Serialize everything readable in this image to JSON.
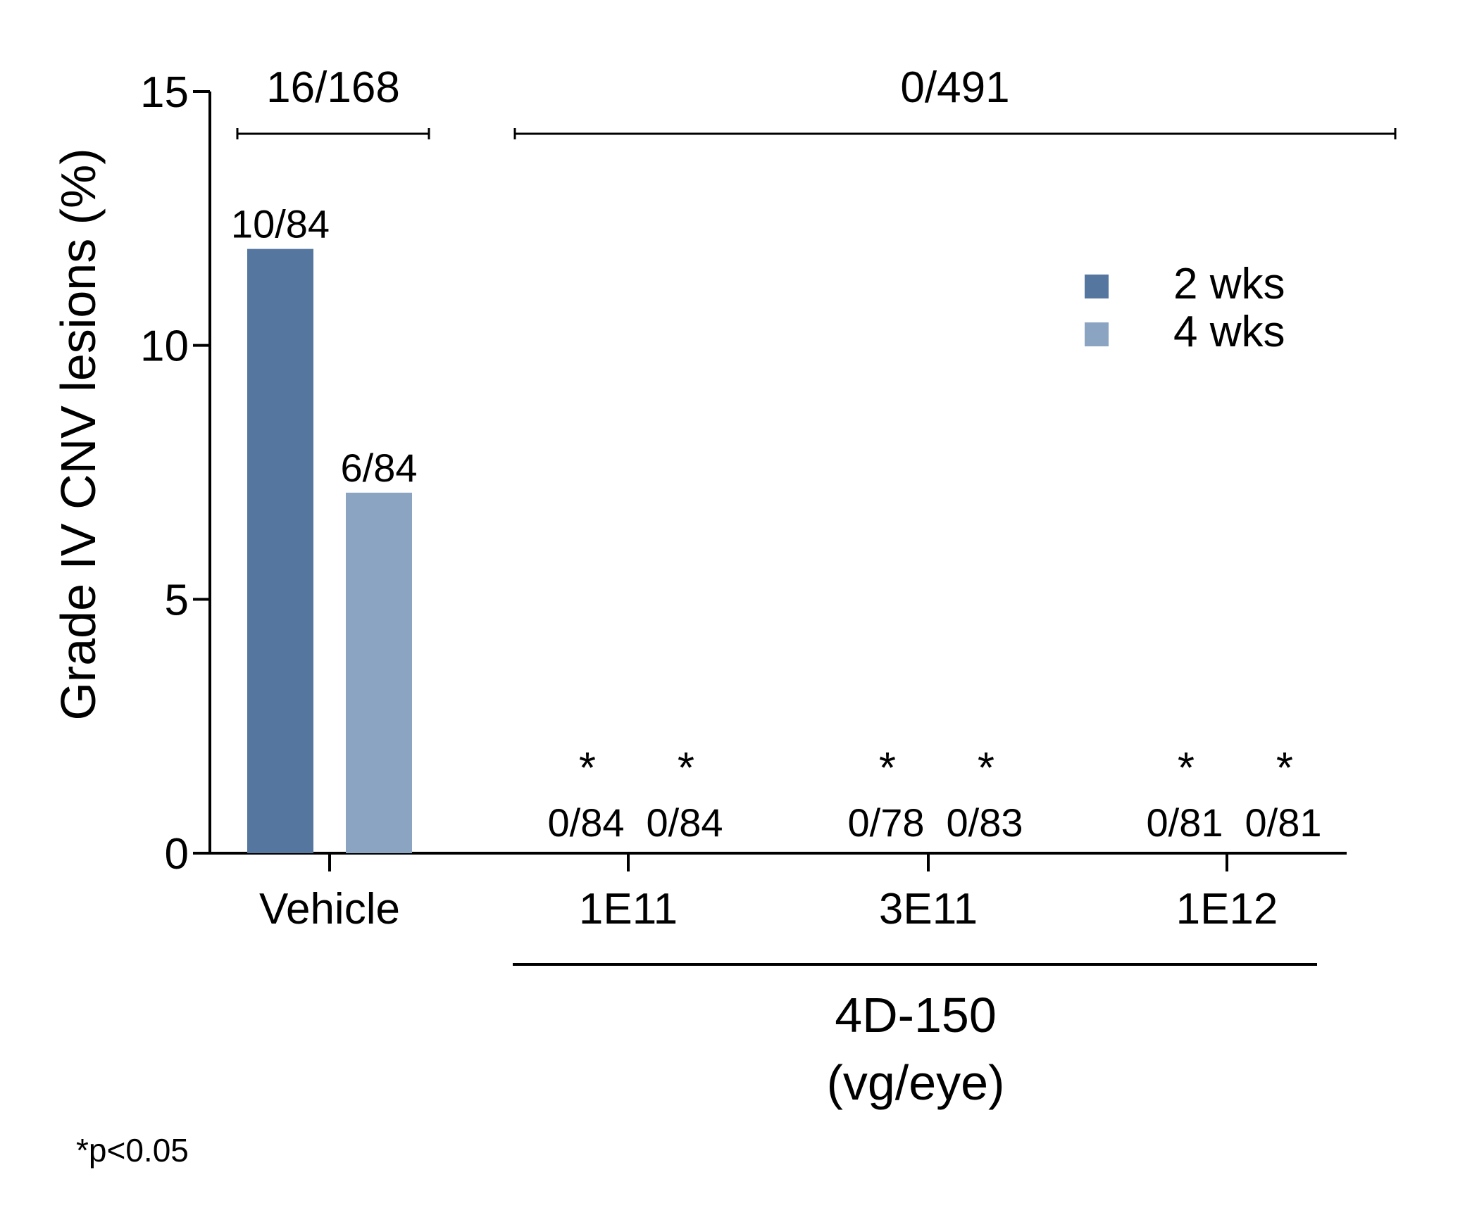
{
  "chart_data": {
    "type": "bar",
    "ylabel": "Grade IV CNV lesions (%)",
    "yticks": [
      0,
      5,
      10,
      15
    ],
    "ylim": [
      0,
      15
    ],
    "categories": [
      "Vehicle",
      "1E11",
      "3E11",
      "1E12"
    ],
    "series": [
      {
        "name": "2 wks",
        "color": "#55779f"
      },
      {
        "name": "4 wks",
        "color": "#8aa4c1"
      }
    ],
    "bars": [
      {
        "category": "Vehicle",
        "series": "2 wks",
        "value": 11.9,
        "label": "10/84",
        "significant": false
      },
      {
        "category": "Vehicle",
        "series": "4 wks",
        "value": 7.1,
        "label": "6/84",
        "significant": false
      },
      {
        "category": "1E11",
        "series": "2 wks",
        "value": 0,
        "label": "0/84",
        "significant": true
      },
      {
        "category": "1E11",
        "series": "4 wks",
        "value": 0,
        "label": "0/84",
        "significant": true
      },
      {
        "category": "3E11",
        "series": "2 wks",
        "value": 0,
        "label": "0/78",
        "significant": true
      },
      {
        "category": "3E11",
        "series": "4 wks",
        "value": 0,
        "label": "0/83",
        "significant": true
      },
      {
        "category": "1E12",
        "series": "2 wks",
        "value": 0,
        "label": "0/81",
        "significant": true
      },
      {
        "category": "1E12",
        "series": "4 wks",
        "value": 0,
        "label": "0/81",
        "significant": true
      }
    ],
    "significance_mark": "*",
    "brackets": [
      {
        "label": "16/168",
        "from": "Vehicle",
        "to": "Vehicle"
      },
      {
        "label": "0/491",
        "from": "1E11",
        "to": "1E12"
      }
    ],
    "group_label": {
      "line1": "4D-150",
      "line2": "(vg/eye)",
      "categories": [
        "1E11",
        "3E11",
        "1E12"
      ]
    },
    "legend_position": "top-right",
    "footnote": "*p<0.05"
  }
}
